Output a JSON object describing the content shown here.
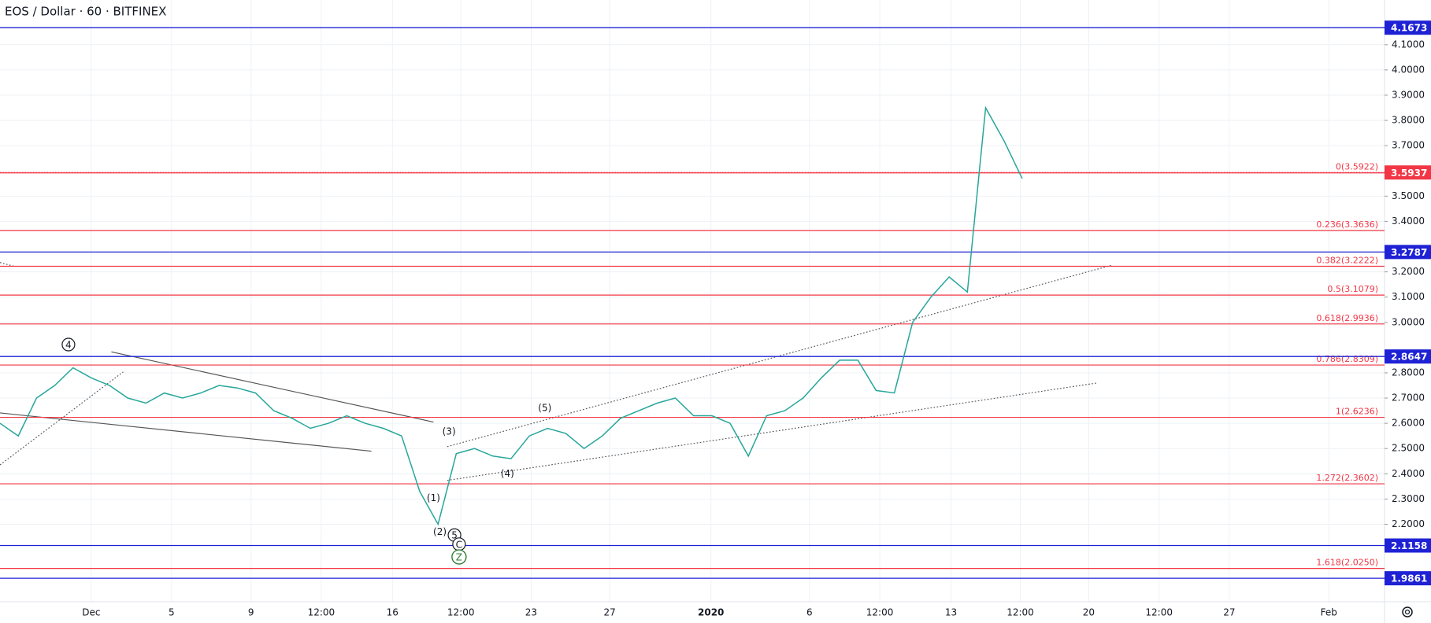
{
  "chart_data": {
    "type": "line",
    "title": "EOS / Dollar · 60 · BITFINEX",
    "color": "#26a69a",
    "values": [
      2.6,
      2.55,
      2.7,
      2.75,
      2.82,
      2.78,
      2.75,
      2.7,
      2.68,
      2.72,
      2.7,
      2.72,
      2.75,
      2.74,
      2.72,
      2.65,
      2.62,
      2.58,
      2.6,
      2.63,
      2.6,
      2.58,
      2.55,
      2.33,
      2.2,
      2.48,
      2.5,
      2.47,
      2.46,
      2.55,
      2.58,
      2.56,
      2.5,
      2.55,
      2.62,
      2.65,
      2.68,
      2.7,
      2.63,
      2.63,
      2.6,
      2.47,
      2.63,
      2.65,
      2.7,
      2.78,
      2.85,
      2.85,
      2.73,
      2.72,
      3.0,
      3.1,
      3.18,
      3.12,
      3.85,
      3.72,
      3.57
    ],
    "ylim": [
      1.893,
      4.277
    ],
    "yticks": [
      {
        "value": 2.2,
        "label": "2.2000"
      },
      {
        "value": 2.3,
        "label": "2.3000"
      },
      {
        "value": 2.4,
        "label": "2.4000"
      },
      {
        "value": 2.5,
        "label": "2.5000"
      },
      {
        "value": 2.6,
        "label": "2.6000"
      },
      {
        "value": 2.7,
        "label": "2.7000"
      },
      {
        "value": 2.8,
        "label": "2.8000"
      },
      {
        "value": 3.0,
        "label": "3.0000"
      },
      {
        "value": 3.1,
        "label": "3.1000"
      },
      {
        "value": 3.2,
        "label": "3.2000"
      },
      {
        "value": 3.4,
        "label": "3.4000"
      },
      {
        "value": 3.5,
        "label": "3.5000"
      },
      {
        "value": 3.7,
        "label": "3.7000"
      },
      {
        "value": 3.8,
        "label": "3.8000"
      },
      {
        "value": 3.9,
        "label": "3.9000"
      },
      {
        "value": 4.0,
        "label": "4.0000"
      },
      {
        "value": 4.1,
        "label": "4.1000"
      }
    ],
    "time_labels": [
      "Dec",
      "5",
      "9",
      "12:00",
      "16",
      "12:00",
      "23",
      "27",
      "2020",
      "6",
      "12:00",
      "13",
      "12:00",
      "20",
      "12:00",
      "27",
      "Feb"
    ],
    "grid": true,
    "support_levels": [
      4.1673,
      3.2787,
      2.8647,
      2.1158,
      1.9861
    ],
    "support_color": "#1e22d4",
    "last_price": 3.5937,
    "fib_color": "#f23645",
    "fib_levels": [
      {
        "label": "0(3.5922)",
        "value": 3.5922
      },
      {
        "label": "0.236(3.3636)",
        "value": 3.3636
      },
      {
        "label": "0.382(3.2222)",
        "value": 3.2222
      },
      {
        "label": "0.5(3.1079)",
        "value": 3.1079
      },
      {
        "label": "0.618(2.9936)",
        "value": 2.9936
      },
      {
        "label": "0.786(2.8309)",
        "value": 2.8309
      },
      {
        "label": "1(2.6236)",
        "value": 2.6236
      },
      {
        "label": "1.272(2.3602)",
        "value": 2.3602
      },
      {
        "label": "1.618(2.0250)",
        "value": 2.025
      }
    ],
    "annotations": [
      "4",
      "(3)",
      "(1)",
      "(2)",
      "5",
      "C",
      "Z",
      "(5)",
      "(4)"
    ]
  }
}
